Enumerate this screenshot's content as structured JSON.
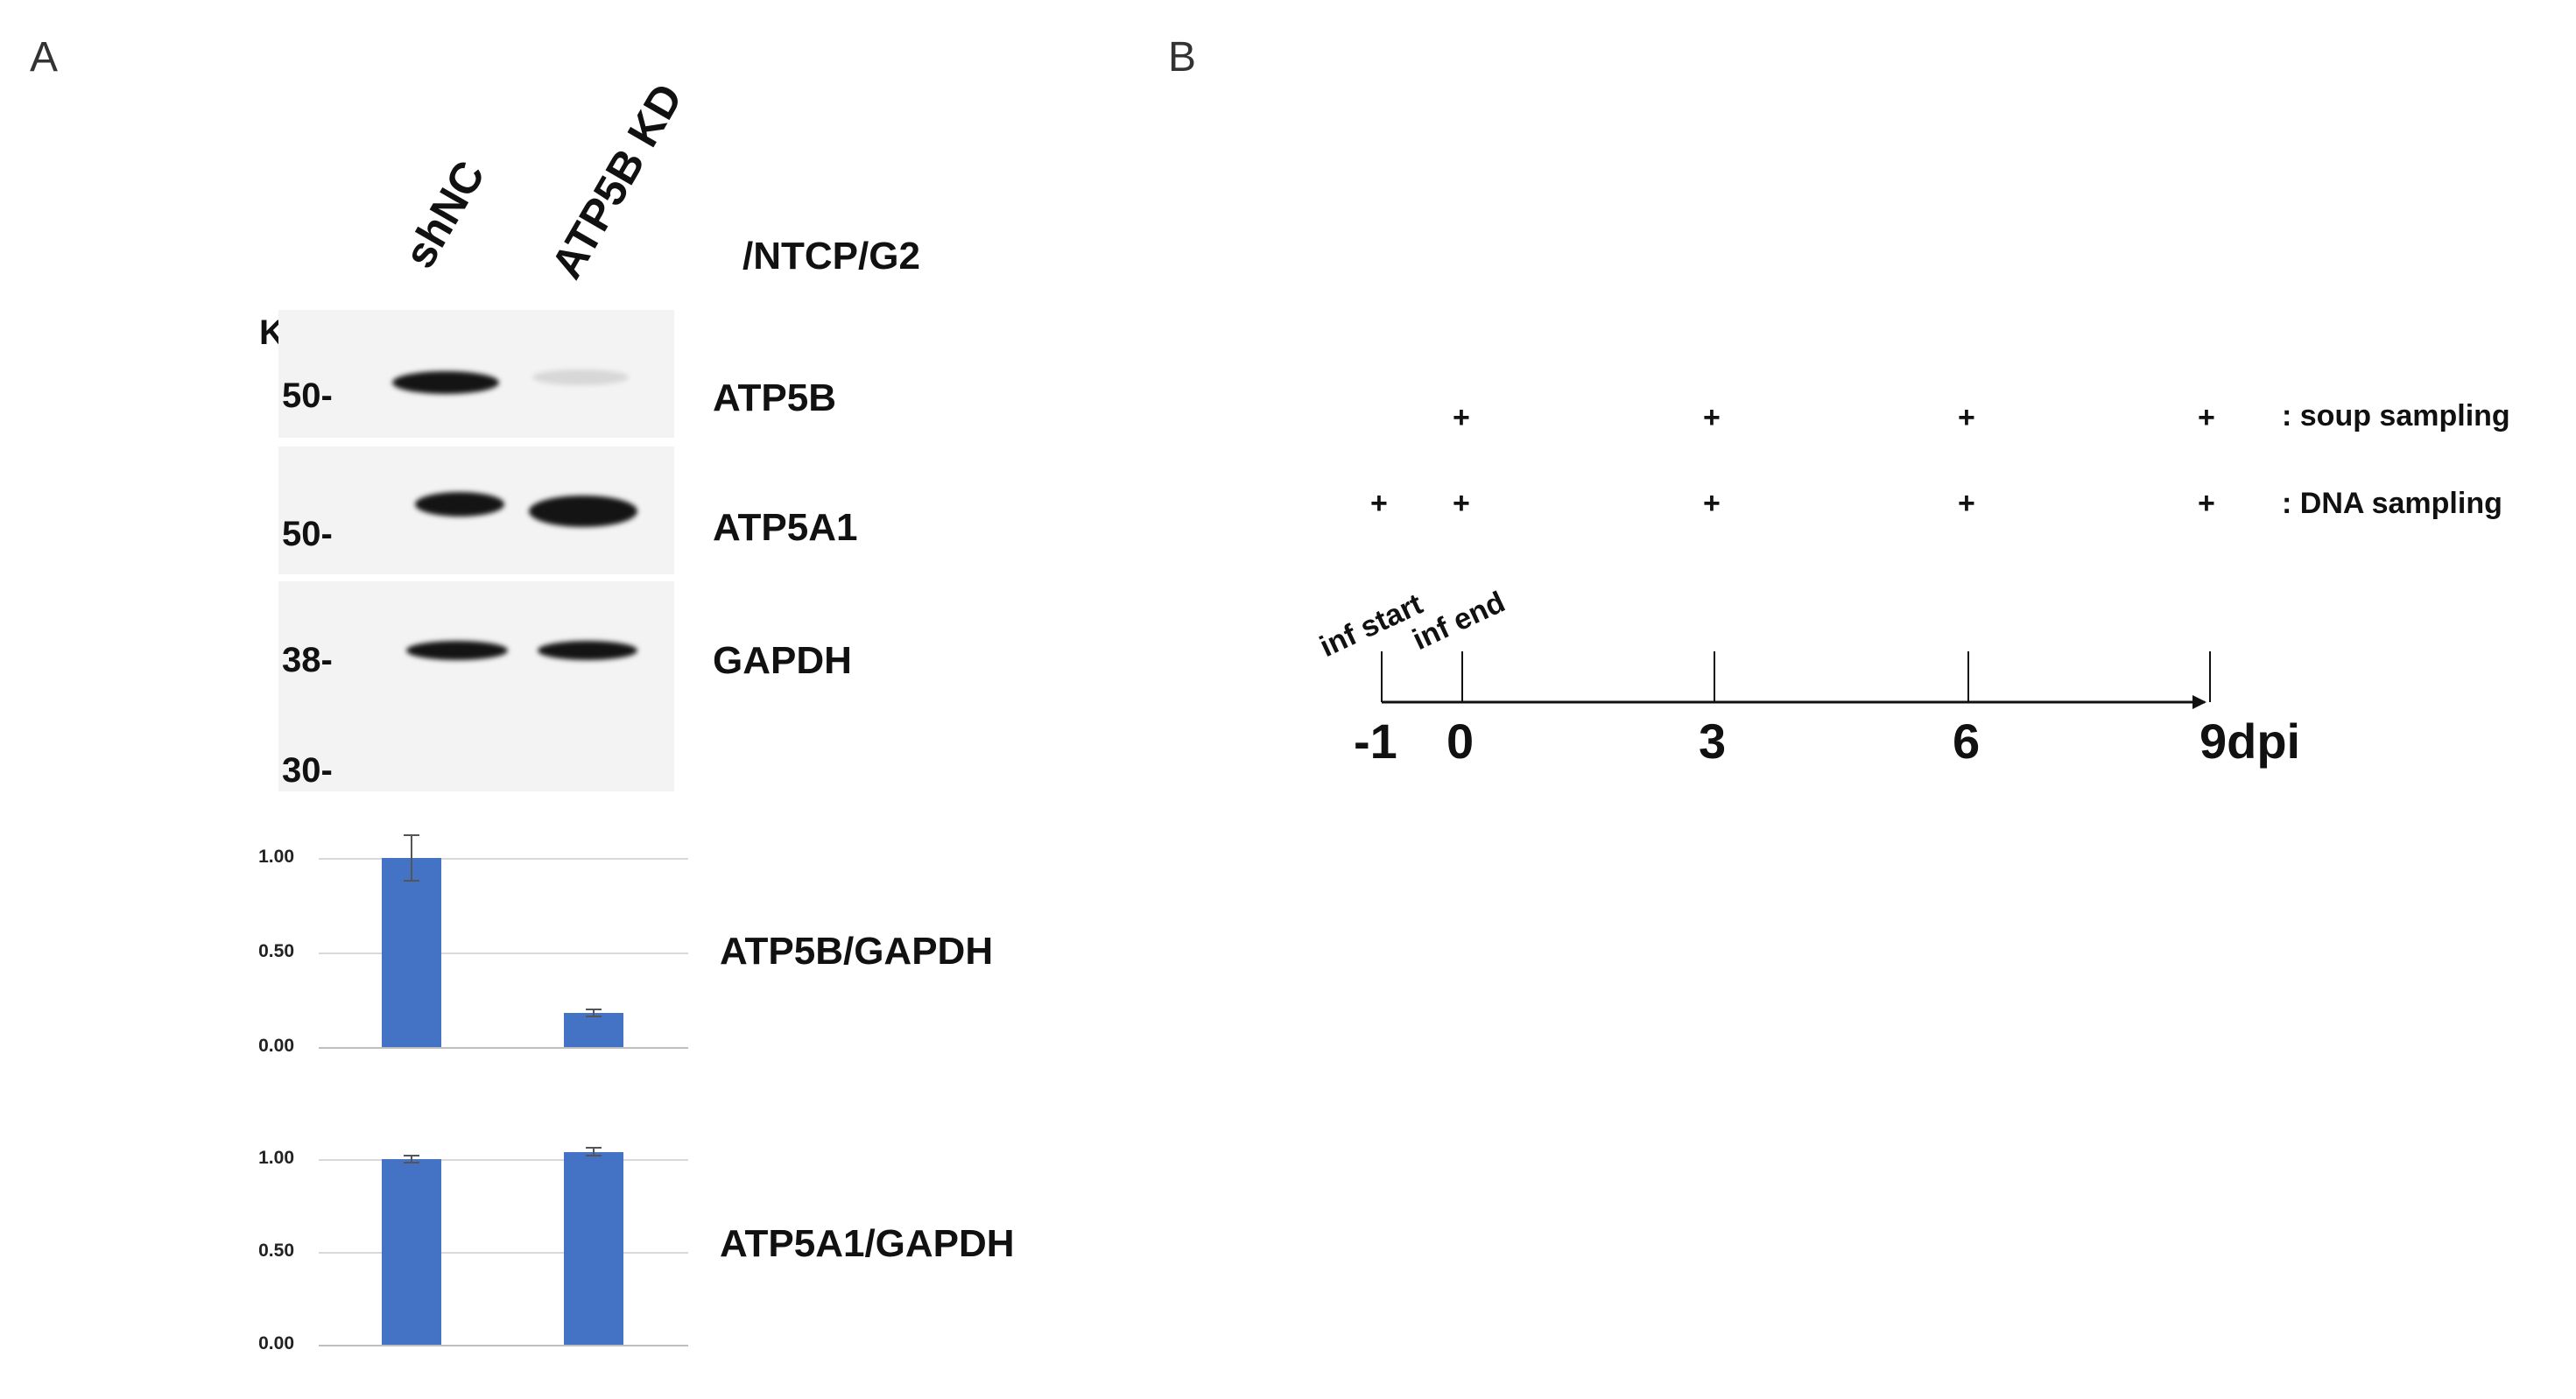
{
  "panel_a": {
    "letter": "A",
    "lanes": [
      "shNC",
      "ATP5B KD"
    ],
    "cell_line": "/NTCP/G2",
    "kd_header": "Kd",
    "markers": [
      "50-",
      "50-",
      "38-",
      "30-"
    ],
    "bands": [
      "ATP5B",
      "ATP5A1",
      "GAPDH"
    ]
  },
  "panel_b": {
    "letter": "B",
    "timepoints": [
      "-1",
      "0",
      "3",
      "6",
      "9dpi"
    ],
    "inf_start": "inf start",
    "inf_end": "inf end",
    "marker": "+",
    "soup_label": ": soup sampling",
    "dna_label": ": DNA sampling"
  },
  "chart_data": [
    {
      "type": "bar",
      "ylabel": "ATP5B/GAPDH",
      "categories": [
        "shNC",
        "ATP5B KD"
      ],
      "values": [
        1.0,
        0.18
      ],
      "error": [
        0.12,
        0.02
      ],
      "yticks": [
        "1.00",
        "0.50",
        "0.00"
      ],
      "ylim": [
        0,
        1.0
      ],
      "color": "#4472c4",
      "grid": true
    },
    {
      "type": "bar",
      "ylabel": "ATP5A1/GAPDH",
      "categories": [
        "shNC",
        "ATP5B KD"
      ],
      "values": [
        1.0,
        1.04
      ],
      "error": [
        0.02,
        0.02
      ],
      "yticks": [
        "1.00",
        "0.50",
        "0.00"
      ],
      "ylim": [
        0,
        1.0
      ],
      "color": "#4472c4",
      "grid": true
    }
  ]
}
